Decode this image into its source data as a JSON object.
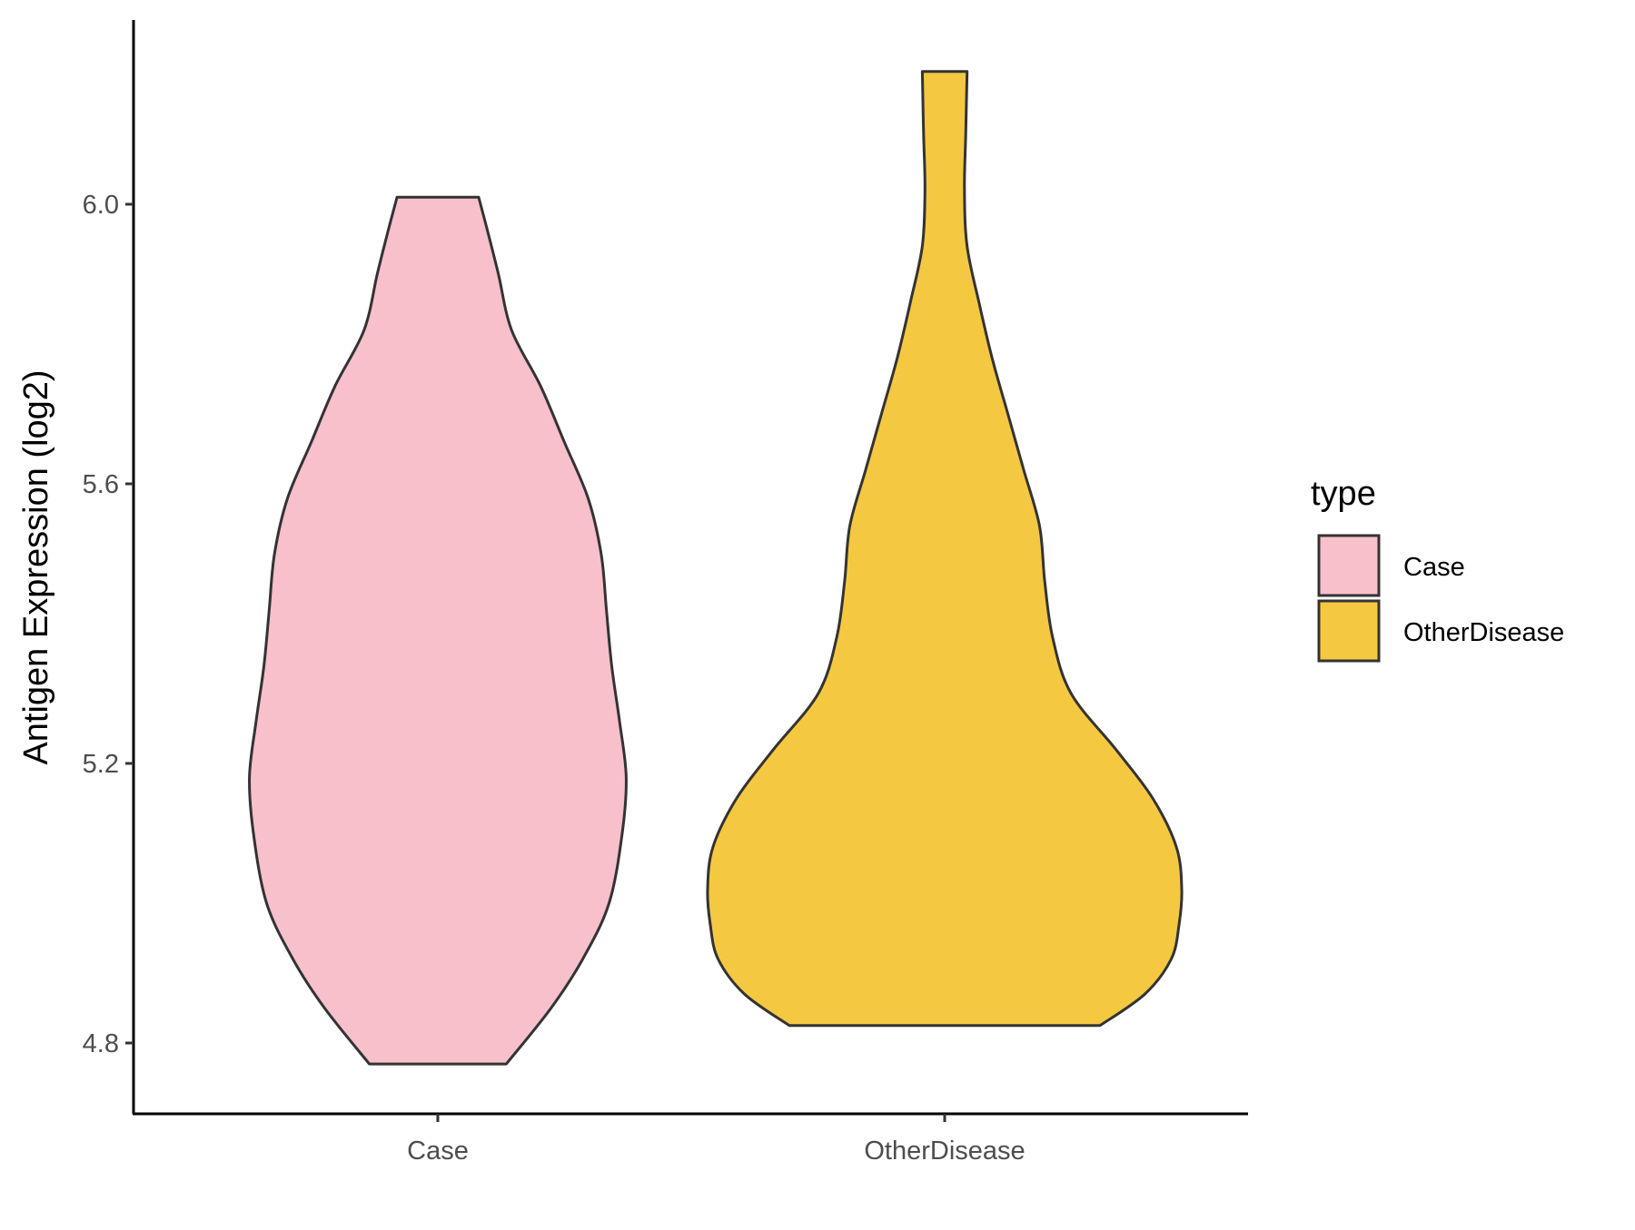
{
  "chart_data": {
    "type": "violin",
    "ylabel": "Antigen Expression (log2)",
    "xlabel": "",
    "categories": [
      "Case",
      "OtherDisease"
    ],
    "yticks": [
      "4.8",
      "5.2",
      "5.6",
      "6.0"
    ],
    "ylim": [
      4.7,
      6.27
    ],
    "grid": false,
    "legend": {
      "title": "type",
      "placement": "right",
      "entries": [
        {
          "label": "Case",
          "color": "#F7C0CB"
        },
        {
          "label": "OtherDisease",
          "color": "#F5C842"
        }
      ]
    },
    "series": [
      {
        "category": "Case",
        "color": "#F7C0CB",
        "min": 4.77,
        "max": 6.01,
        "density": [
          [
            4.77,
            0.26
          ],
          [
            4.85,
            0.43
          ],
          [
            4.92,
            0.55
          ],
          [
            5.0,
            0.65
          ],
          [
            5.1,
            0.7
          ],
          [
            5.18,
            0.715
          ],
          [
            5.26,
            0.69
          ],
          [
            5.34,
            0.66
          ],
          [
            5.42,
            0.64
          ],
          [
            5.5,
            0.62
          ],
          [
            5.58,
            0.57
          ],
          [
            5.66,
            0.48
          ],
          [
            5.74,
            0.39
          ],
          [
            5.82,
            0.28
          ],
          [
            5.9,
            0.23
          ],
          [
            5.96,
            0.19
          ],
          [
            6.01,
            0.155
          ]
        ]
      },
      {
        "category": "OtherDisease",
        "color": "#F5C842",
        "min": 4.825,
        "max": 6.19,
        "density": [
          [
            4.825,
            0.59
          ],
          [
            4.87,
            0.76
          ],
          [
            4.92,
            0.86
          ],
          [
            4.97,
            0.89
          ],
          [
            5.02,
            0.9
          ],
          [
            5.08,
            0.88
          ],
          [
            5.15,
            0.79
          ],
          [
            5.22,
            0.65
          ],
          [
            5.3,
            0.48
          ],
          [
            5.38,
            0.41
          ],
          [
            5.46,
            0.38
          ],
          [
            5.54,
            0.36
          ],
          [
            5.62,
            0.3
          ],
          [
            5.7,
            0.24
          ],
          [
            5.78,
            0.18
          ],
          [
            5.86,
            0.13
          ],
          [
            5.94,
            0.085
          ],
          [
            6.02,
            0.075
          ],
          [
            6.1,
            0.08
          ],
          [
            6.19,
            0.085
          ]
        ]
      }
    ]
  }
}
